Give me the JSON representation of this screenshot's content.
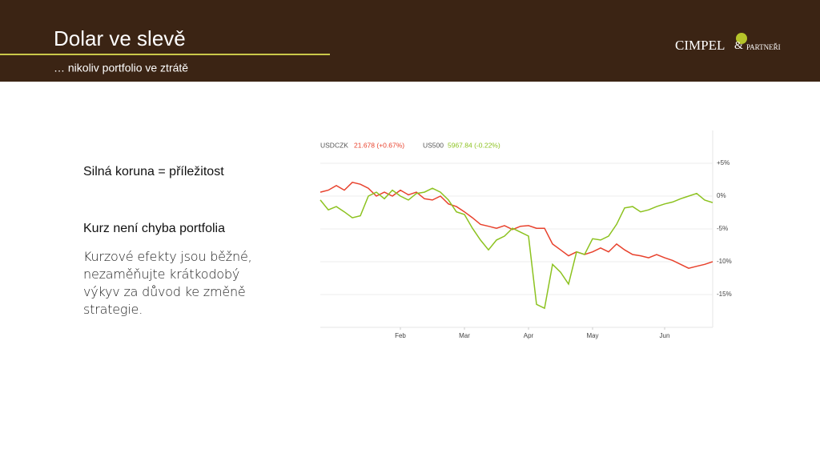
{
  "header": {
    "title": "Dolar ve slevě",
    "subtitle": "… nikoliv portfolio ve ztrátě"
  },
  "logo": {
    "name": "CIMPEL",
    "connector": "&",
    "partners": "PARTNEŘI"
  },
  "content": {
    "point1": "Silná koruna = příležitost",
    "point2": "Kurz není chyba portfolia",
    "body": "Kurzové efekty jsou běžné, nezaměňujte krátkodobý výkyv za důvod ke změně strategie."
  },
  "chart_data": {
    "type": "line",
    "categories": [
      null,
      null,
      null,
      null,
      null,
      null,
      null,
      null,
      null,
      null,
      "Feb",
      null,
      null,
      null,
      null,
      null,
      null,
      null,
      "Mar",
      null,
      null,
      null,
      null,
      null,
      null,
      null,
      "Apr",
      null,
      null,
      null,
      null,
      null,
      null,
      null,
      "May",
      null,
      null,
      null,
      null,
      null,
      null,
      null,
      null,
      "Jun",
      null,
      null,
      null,
      null,
      null,
      null
    ],
    "series": [
      {
        "name": "USDCZK",
        "quote": "21.678 (+0.67%)",
        "color": "#e8412c",
        "values": [
          0.6,
          0.9,
          1.6,
          0.9,
          2.1,
          1.8,
          1.2,
          0,
          0.6,
          0,
          0.9,
          0.2,
          0.6,
          -0.4,
          -0.6,
          0,
          -1.2,
          -1.6,
          -2.4,
          -3.3,
          -4.3,
          -4.6,
          -4.9,
          -4.5,
          -5.1,
          -4.6,
          -4.5,
          -4.9,
          -4.9,
          -7.3,
          -8.2,
          -9.1,
          -8.5,
          -8.9,
          -8.5,
          -7.9,
          -8.5,
          -7.3,
          -8.2,
          -8.9,
          -9.1,
          -9.4,
          -8.9,
          -9.4,
          -9.8,
          -10.4,
          -11,
          -10.7,
          -10.4,
          -10
        ]
      },
      {
        "name": "US500",
        "quote": "5967.84 (-0.22%)",
        "color": "#8cc21f",
        "values": [
          -0.6,
          -2.1,
          -1.6,
          -2.4,
          -3.3,
          -3,
          0,
          0.6,
          -0.4,
          0.9,
          0,
          -0.6,
          0.4,
          0.6,
          1.2,
          0.6,
          -0.6,
          -2.4,
          -2.8,
          -4.9,
          -6.7,
          -8.2,
          -6.7,
          -6.1,
          -4.9,
          -5.5,
          -6.1,
          -16.5,
          -17.1,
          -10.4,
          -11.6,
          -13.4,
          -8.5,
          -8.9,
          -6.5,
          -6.7,
          -6.1,
          -4.3,
          -1.8,
          -1.6,
          -2.4,
          -2.1,
          -1.6,
          -1.2,
          -0.9,
          -0.4,
          0,
          0.4,
          -0.6,
          -1
        ]
      }
    ],
    "ylim": [
      -20,
      10
    ],
    "yticks": [
      {
        "value": 5,
        "label": "+5%"
      },
      {
        "value": 0,
        "label": "0%"
      },
      {
        "value": -5,
        "label": "-5%"
      },
      {
        "value": -10,
        "label": "-10%"
      },
      {
        "value": -15,
        "label": "-15%"
      }
    ],
    "grid": true
  }
}
